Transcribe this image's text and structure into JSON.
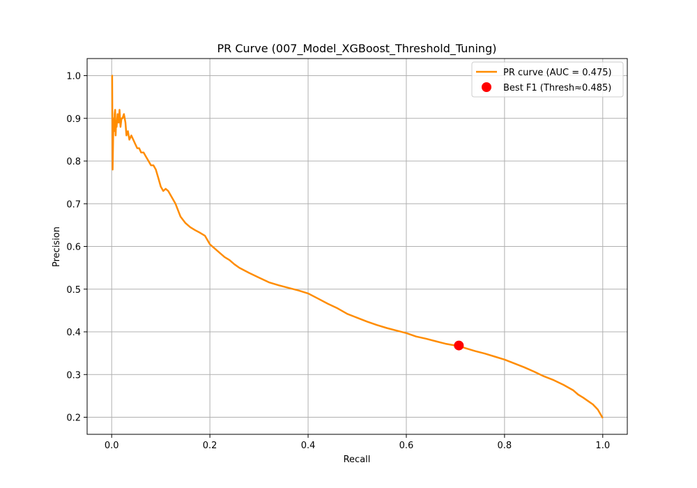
{
  "chart_data": {
    "type": "line",
    "title": "PR Curve (007_Model_XGBoost_Threshold_Tuning)",
    "xlabel": "Recall",
    "ylabel": "Precision",
    "xlim": [
      -0.05,
      1.05
    ],
    "ylim": [
      0.16,
      1.04
    ],
    "xticks": [
      0.0,
      0.2,
      0.4,
      0.6,
      0.8,
      1.0
    ],
    "xtick_labels": [
      "0.0",
      "0.2",
      "0.4",
      "0.6",
      "0.8",
      "1.0"
    ],
    "yticks": [
      0.2,
      0.3,
      0.4,
      0.5,
      0.6,
      0.7,
      0.8,
      0.9,
      1.0
    ],
    "ytick_labels": [
      "0.2",
      "0.3",
      "0.4",
      "0.5",
      "0.6",
      "0.7",
      "0.8",
      "0.9",
      "1.0"
    ],
    "grid": true,
    "legend_position": "top-right",
    "series": [
      {
        "name": "PR curve (AUC = 0.475)",
        "kind": "line",
        "color": "#ff8c00",
        "x": [
          0.0,
          0.001,
          0.002,
          0.003,
          0.004,
          0.005,
          0.006,
          0.007,
          0.008,
          0.009,
          0.01,
          0.012,
          0.014,
          0.016,
          0.018,
          0.02,
          0.022,
          0.025,
          0.028,
          0.03,
          0.033,
          0.036,
          0.04,
          0.044,
          0.048,
          0.052,
          0.056,
          0.06,
          0.065,
          0.07,
          0.075,
          0.08,
          0.085,
          0.09,
          0.095,
          0.1,
          0.105,
          0.11,
          0.115,
          0.12,
          0.13,
          0.14,
          0.15,
          0.16,
          0.17,
          0.18,
          0.19,
          0.2,
          0.21,
          0.22,
          0.23,
          0.24,
          0.25,
          0.26,
          0.28,
          0.3,
          0.32,
          0.34,
          0.36,
          0.38,
          0.4,
          0.42,
          0.44,
          0.46,
          0.48,
          0.5,
          0.52,
          0.54,
          0.56,
          0.58,
          0.6,
          0.62,
          0.64,
          0.66,
          0.68,
          0.7,
          0.707,
          0.72,
          0.74,
          0.76,
          0.78,
          0.8,
          0.82,
          0.84,
          0.86,
          0.88,
          0.9,
          0.92,
          0.94,
          0.95,
          0.96,
          0.97,
          0.98,
          0.99,
          1.0
        ],
        "y": [
          1.0,
          1.0,
          0.78,
          0.85,
          0.9,
          0.87,
          0.91,
          0.92,
          0.86,
          0.89,
          0.88,
          0.91,
          0.89,
          0.92,
          0.88,
          0.9,
          0.9,
          0.91,
          0.89,
          0.86,
          0.87,
          0.85,
          0.86,
          0.85,
          0.84,
          0.83,
          0.83,
          0.82,
          0.82,
          0.81,
          0.8,
          0.79,
          0.79,
          0.78,
          0.76,
          0.74,
          0.73,
          0.735,
          0.73,
          0.72,
          0.7,
          0.67,
          0.655,
          0.645,
          0.638,
          0.632,
          0.625,
          0.605,
          0.595,
          0.585,
          0.575,
          0.568,
          0.558,
          0.55,
          0.538,
          0.527,
          0.516,
          0.509,
          0.503,
          0.497,
          0.49,
          0.478,
          0.466,
          0.455,
          0.442,
          0.433,
          0.424,
          0.416,
          0.409,
          0.403,
          0.397,
          0.389,
          0.384,
          0.378,
          0.372,
          0.368,
          0.367,
          0.362,
          0.355,
          0.349,
          0.342,
          0.335,
          0.326,
          0.317,
          0.307,
          0.296,
          0.287,
          0.276,
          0.263,
          0.253,
          0.246,
          0.238,
          0.23,
          0.218,
          0.198
        ]
      },
      {
        "name": "Best F1 (Thresh≈0.485)",
        "kind": "scatter",
        "color": "#ff0000",
        "x": [
          0.707
        ],
        "y": [
          0.368
        ]
      }
    ]
  }
}
